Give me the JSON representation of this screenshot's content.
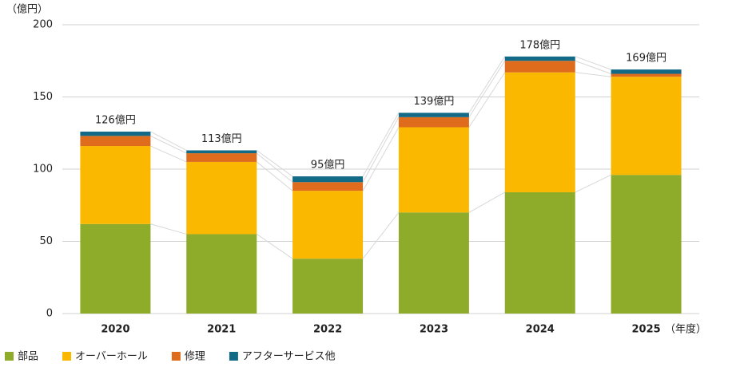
{
  "chart_data": {
    "type": "stacked-bar",
    "y_axis_label": "（億円）",
    "x_axis_label": "（年度）",
    "categories": [
      "2020",
      "2021",
      "2022",
      "2023",
      "2024",
      "2025"
    ],
    "series": [
      {
        "name": "部品",
        "color": "#8fab2a",
        "values": [
          62,
          55,
          38,
          70,
          84,
          96
        ]
      },
      {
        "name": "オーバーホール",
        "color": "#fbb800",
        "values": [
          54,
          50,
          47,
          59,
          83,
          68
        ]
      },
      {
        "name": "修理",
        "color": "#df6c1c",
        "values": [
          7,
          6,
          6,
          7,
          8,
          2
        ]
      },
      {
        "name": "アフターサービス他",
        "color": "#126a86",
        "values": [
          3,
          2,
          4,
          3,
          3,
          3
        ]
      }
    ],
    "totals": [
      126,
      113,
      95,
      139,
      178,
      169
    ],
    "total_labels": [
      "126億円",
      "113億円",
      "95億円",
      "139億円",
      "178億円",
      "169億円"
    ],
    "ylim": [
      0,
      200
    ],
    "yticks": [
      0,
      50,
      100,
      150,
      200
    ],
    "grid": true
  }
}
